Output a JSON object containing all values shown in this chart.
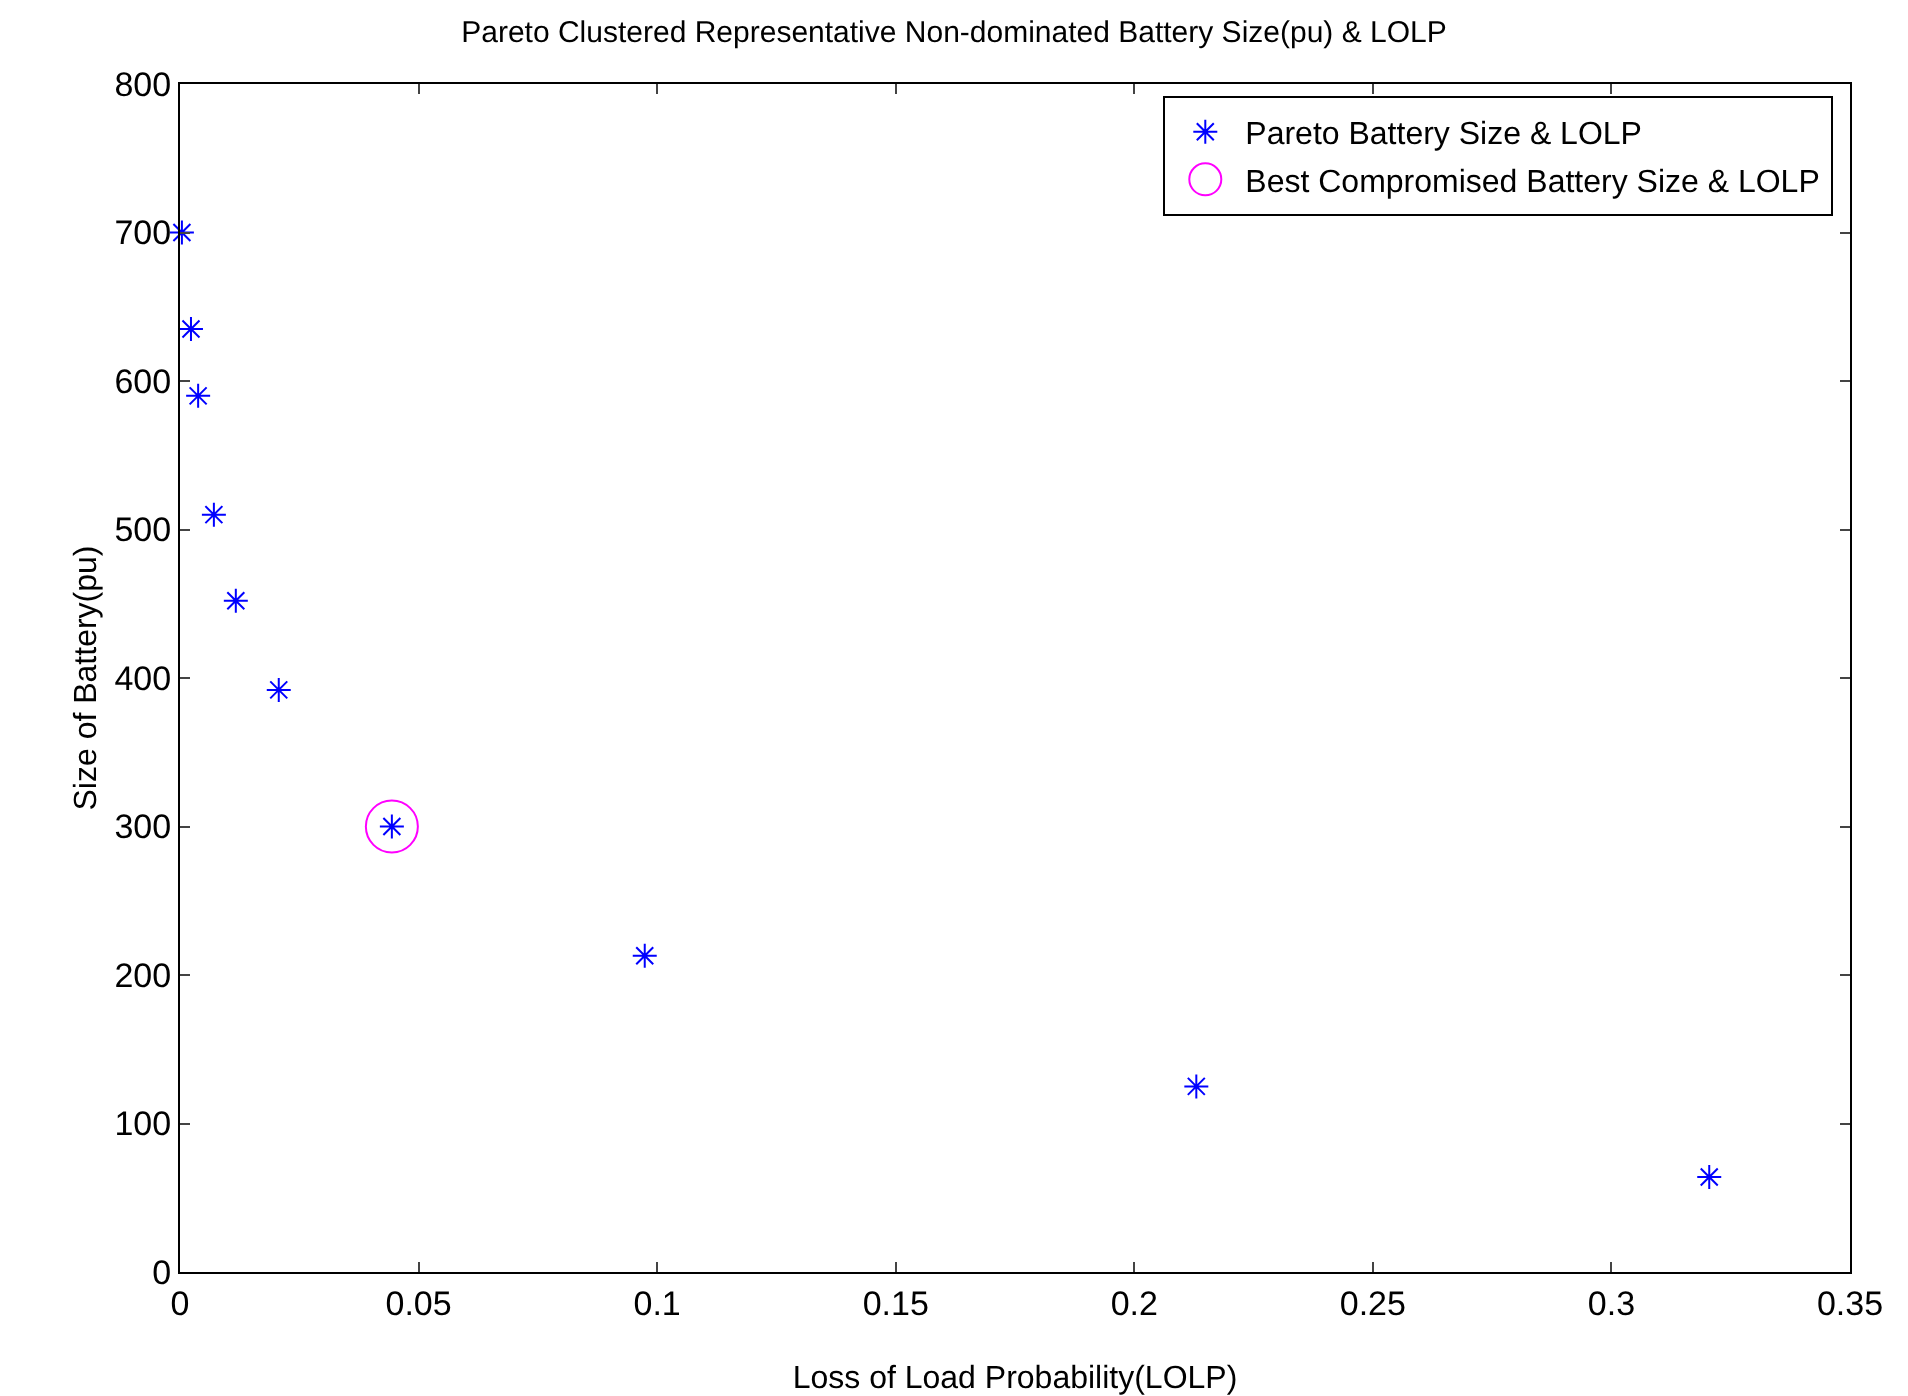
{
  "chart_data": {
    "type": "scatter",
    "title": "Pareto Clustered Representative Non-dominated Battery Size(pu) & LOLP",
    "xlabel": "Loss of Load Probability(LOLP)",
    "ylabel": "Size of Battery(pu)",
    "xlim": [
      0,
      0.35
    ],
    "xticks": [
      0,
      0.05,
      0.1,
      0.15,
      0.2,
      0.25,
      0.3,
      0.35
    ],
    "ylim": [
      0,
      800
    ],
    "yticks": [
      0,
      100,
      200,
      300,
      400,
      500,
      600,
      700,
      800
    ],
    "grid": false,
    "legend": "top right",
    "series": [
      {
        "name": "Pareto Battery Size & LOLP",
        "color": "#0000ff",
        "marker": "cross",
        "x": [
          0.0004,
          0.0023,
          0.0038,
          0.0071,
          0.0117,
          0.0207,
          0.0444,
          0.0974,
          0.213,
          0.3205
        ],
        "values": [
          700,
          635,
          590,
          510,
          452,
          392,
          300,
          213,
          125,
          64
        ]
      },
      {
        "name": "Best Compromised Battery Size & LOLP",
        "color": "#ff00ff",
        "marker": "circle",
        "x": [
          0.0444
        ],
        "values": [
          300
        ]
      }
    ]
  }
}
